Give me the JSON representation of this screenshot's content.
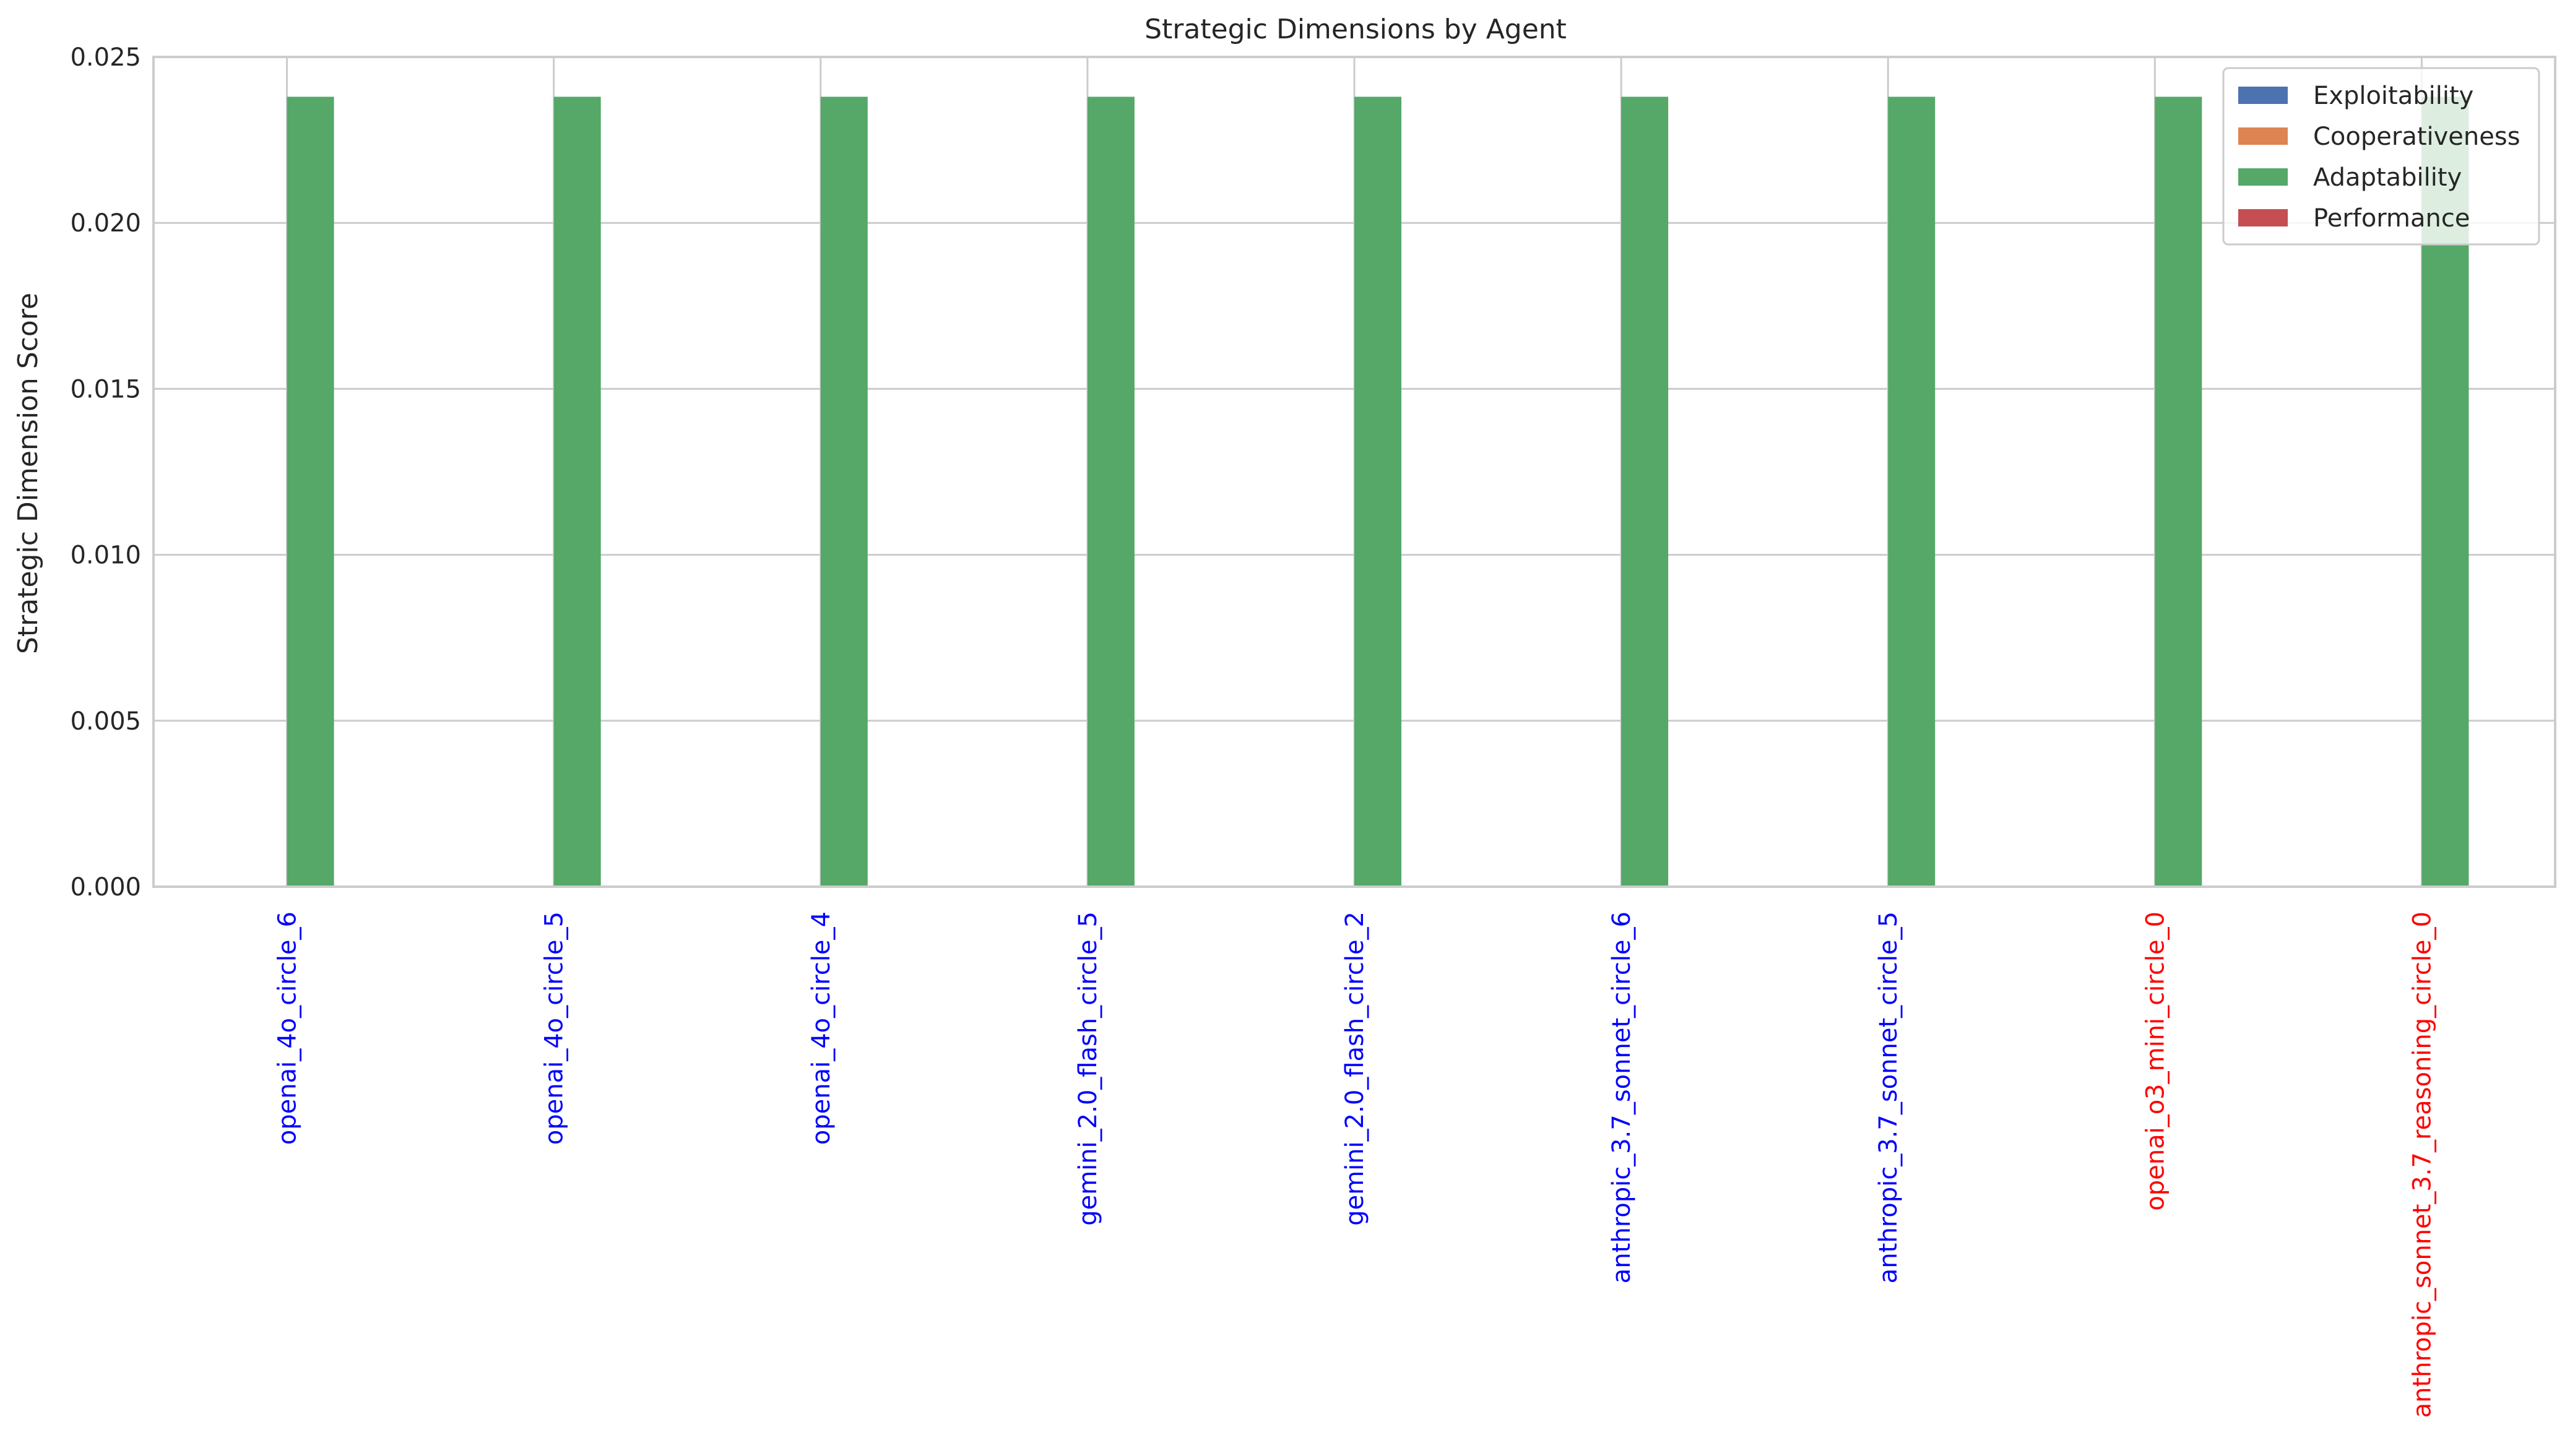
{
  "chart_data": {
    "type": "bar",
    "title": "Strategic Dimensions by Agent",
    "xlabel": "",
    "ylabel": "Strategic Dimension Score",
    "ylim": [
      0,
      0.025
    ],
    "yticks": [
      "0.000",
      "0.005",
      "0.010",
      "0.015",
      "0.020",
      "0.025"
    ],
    "grid": true,
    "legend_position": "top-right",
    "categories": [
      "openai_4o_circle_6",
      "openai_4o_circle_5",
      "openai_4o_circle_4",
      "gemini_2.0_flash_circle_5",
      "gemini_2.0_flash_circle_2",
      "anthropic_3.7_sonnet_circle_6",
      "anthropic_3.7_sonnet_circle_5",
      "openai_o3_mini_circle_0",
      "anthropic_sonnet_3.7_reasoning_circle_0"
    ],
    "category_colors": [
      "#0000ff",
      "#0000ff",
      "#0000ff",
      "#0000ff",
      "#0000ff",
      "#0000ff",
      "#0000ff",
      "#ff0000",
      "#ff0000"
    ],
    "series": [
      {
        "name": "Exploitability",
        "color": "#4c72b0",
        "values": [
          0,
          0,
          0,
          0,
          0,
          0,
          0,
          0,
          0
        ]
      },
      {
        "name": "Cooperativeness",
        "color": "#dd8452",
        "values": [
          0,
          0,
          0,
          0,
          0,
          0,
          0,
          0,
          0
        ]
      },
      {
        "name": "Adaptability",
        "color": "#55a868",
        "values": [
          0.0238,
          0.0238,
          0.0238,
          0.0238,
          0.0238,
          0.0238,
          0.0238,
          0.0238,
          0.0238
        ]
      },
      {
        "name": "Performance",
        "color": "#c44e52",
        "values": [
          0,
          0,
          0,
          0,
          0,
          0,
          0,
          0,
          0
        ]
      }
    ]
  }
}
